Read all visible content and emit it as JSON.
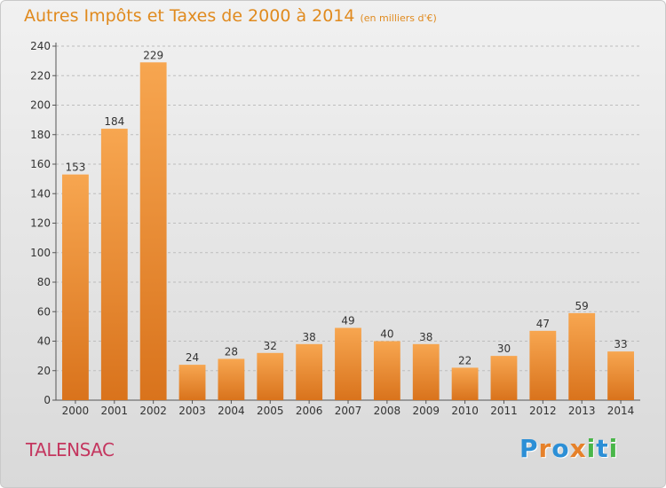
{
  "header": {
    "title": "Autres Impôts et Taxes de 2000 à 2014",
    "subtitle": "(en milliers d'€)"
  },
  "location": "TALENSAC",
  "logo": {
    "letters": [
      "P",
      "r",
      "o",
      "x",
      "i",
      "t",
      "i"
    ],
    "colors": [
      "#2c8fd6",
      "#e6812a",
      "#2c8fd6",
      "#e6812a",
      "#49b649",
      "#2c8fd6",
      "#49b649"
    ]
  },
  "colors": {
    "bar_light": "#f7a650",
    "bar_dark": "#d9731c",
    "grid": "#bdbdbd"
  },
  "chart_data": {
    "type": "bar",
    "categories": [
      "2000",
      "2001",
      "2002",
      "2003",
      "2004",
      "2005",
      "2006",
      "2007",
      "2008",
      "2009",
      "2010",
      "2011",
      "2012",
      "2013",
      "2014"
    ],
    "values": [
      153,
      184,
      229,
      24,
      28,
      32,
      38,
      49,
      40,
      38,
      22,
      30,
      47,
      59,
      33
    ],
    "ylim": [
      0,
      240
    ],
    "yticks": [
      0,
      20,
      40,
      60,
      80,
      100,
      120,
      140,
      160,
      180,
      200,
      220,
      240
    ],
    "grid": true,
    "legend": "none"
  }
}
